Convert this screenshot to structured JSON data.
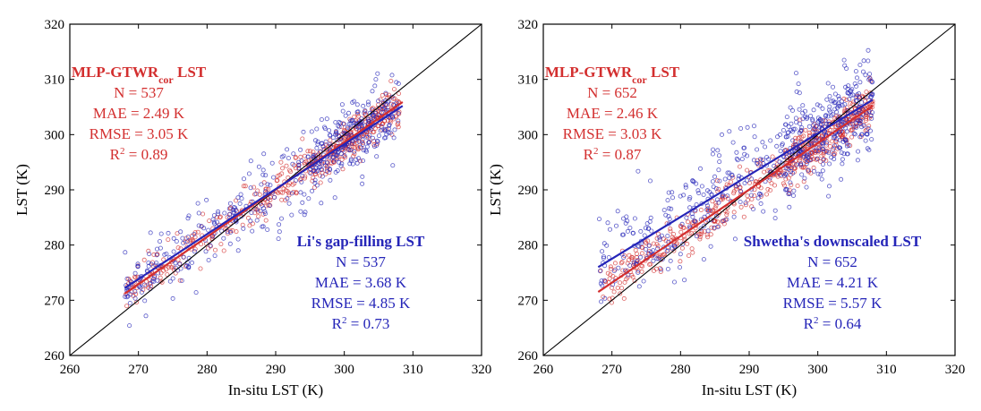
{
  "colors": {
    "red": "#d32f2f",
    "blue": "#2525b8",
    "black": "#000000"
  },
  "chart_data": [
    {
      "type": "scatter",
      "xlabel": "In-situ LST (K)",
      "ylabel": "LST (K)",
      "xlim": [
        260,
        320
      ],
      "ylim": [
        260,
        320
      ],
      "xticks": [
        "260",
        "270",
        "280",
        "290",
        "300",
        "310",
        "320"
      ],
      "yticks": [
        "260",
        "270",
        "280",
        "290",
        "300",
        "310",
        "320"
      ],
      "one_to_one_line": true,
      "series": [
        {
          "name": "MLP-GTWRcor LST",
          "color": "red",
          "n_points": 537,
          "fit": {
            "x": [
              268,
              308.5
            ],
            "y": [
              271.2,
              305.9
            ]
          },
          "stats": {
            "title_main": "MLP-GTWR",
            "title_sub": "cor",
            "title_suffix": " LST",
            "n": "N = 537",
            "mae": "MAE = 2.49 K",
            "rmse": "RMSE = 3.05 K",
            "r2_prefix": "R",
            "r2_sup": "2",
            "r2_value": " = 0.89"
          }
        },
        {
          "name": "Li's gap-filling LST",
          "color": "blue",
          "n_points": 537,
          "fit": {
            "x": [
              268,
              308.5
            ],
            "y": [
              272.2,
              305.2
            ]
          },
          "stats": {
            "title": "Li's gap-filling LST",
            "n": "N = 537",
            "mae": "MAE = 3.68 K",
            "rmse": "RMSE = 4.85 K",
            "r2_prefix": "R",
            "r2_sup": "2",
            "r2_value": " = 0.73"
          }
        }
      ]
    },
    {
      "type": "scatter",
      "xlabel": "In-situ LST (K)",
      "ylabel": "LST (K)",
      "xlim": [
        260,
        320
      ],
      "ylim": [
        260,
        320
      ],
      "xticks": [
        "260",
        "270",
        "280",
        "290",
        "300",
        "310",
        "320"
      ],
      "yticks": [
        "260",
        "270",
        "280",
        "290",
        "300",
        "310",
        "320"
      ],
      "one_to_one_line": true,
      "series": [
        {
          "name": "MLP-GTWRcor LST",
          "color": "red",
          "n_points": 652,
          "fit": {
            "x": [
              268,
              308
            ],
            "y": [
              271.5,
              305.2
            ]
          },
          "stats": {
            "title_main": "MLP-GTWR",
            "title_sub": "cor",
            "title_suffix": " LST",
            "n": "N = 652",
            "mae": "MAE = 2.46 K",
            "rmse": "RMSE = 3.03 K",
            "r2_prefix": "R",
            "r2_sup": "2",
            "r2_value": " = 0.87"
          }
        },
        {
          "name": "Shwetha's downscaled LST",
          "color": "blue",
          "n_points": 652,
          "fit": {
            "x": [
              268,
              308
            ],
            "y": [
              276.0,
              306.3
            ]
          },
          "stats": {
            "title": "Shwetha's downscaled LST",
            "n": "N = 652",
            "mae": "MAE = 4.21 K",
            "rmse": "RMSE = 5.57 K",
            "r2_prefix": "R",
            "r2_sup": "2",
            "r2_value": " = 0.64"
          }
        }
      ]
    }
  ]
}
